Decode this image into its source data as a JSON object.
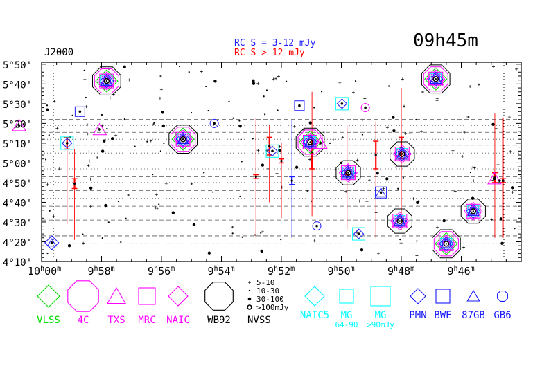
{
  "header": {
    "epoch": "J2000",
    "rc_line_1": "RC S = 3-12 mJy",
    "rc_line_2": "RC S > 12 mJy",
    "field_ra": "09h45m"
  },
  "colors": {
    "blue": "#1a1aff",
    "red": "#ff0000",
    "green": "#00dd00",
    "magenta": "#ff00ff",
    "cyan": "#00ffff",
    "black": "#000000"
  },
  "chart_data": {
    "type": "scatter",
    "xlabel": "",
    "ylabel": "",
    "x_axis": "Right Ascension (decreasing to the right)",
    "xlim_minutes": [
      600,
      584
    ],
    "ylim_arcmin": [
      250,
      351
    ],
    "x_ticks": [
      {
        "label_h": "10",
        "label_m": "00",
        "u": "h",
        "v": "m",
        "min": 600
      },
      {
        "label_h": "9",
        "label_m": "58",
        "u": "h",
        "v": "m",
        "min": 598
      },
      {
        "label_h": "9",
        "label_m": "56",
        "u": "h",
        "v": "m",
        "min": 596
      },
      {
        "label_h": "9",
        "label_m": "54",
        "u": "h",
        "v": "m",
        "min": 594
      },
      {
        "label_h": "9",
        "label_m": "52",
        "u": "h",
        "v": "m",
        "min": 592
      },
      {
        "label_h": "9",
        "label_m": "50",
        "u": "h",
        "v": "m",
        "min": 590
      },
      {
        "label_h": "9",
        "label_m": "48",
        "u": "h",
        "v": "m",
        "min": 588
      },
      {
        "label_h": "9",
        "label_m": "46",
        "u": "h",
        "v": "m",
        "min": 586
      }
    ],
    "y_ticks": [
      {
        "label": "5°50'",
        "arcmin": 350
      },
      {
        "label": "5°40'",
        "arcmin": 340
      },
      {
        "label": "5°30'",
        "arcmin": 330
      },
      {
        "label": "5°20'",
        "arcmin": 320
      },
      {
        "label": "5°10'",
        "arcmin": 310
      },
      {
        "label": "5°00'",
        "arcmin": 300
      },
      {
        "label": "4°50'",
        "arcmin": 290
      },
      {
        "label": "4°40'",
        "arcmin": 280
      },
      {
        "label": "4°30'",
        "arcmin": 270
      },
      {
        "label": "4°20'",
        "arcmin": 260
      },
      {
        "label": "4°10'",
        "arcmin": 250
      }
    ],
    "strip_lines_arcmin": [
      322,
      319,
      315.5,
      312,
      309,
      305,
      301,
      297,
      293,
      290,
      286,
      282,
      278,
      274,
      271,
      267,
      263,
      259
    ],
    "bright_sources": [
      {
        "ra": 597.83,
        "dec": 341.5,
        "set": "full"
      },
      {
        "ra": 595.28,
        "dec": 312.0,
        "set": "full"
      },
      {
        "ra": 591.04,
        "dec": 310.5,
        "set": "full"
      },
      {
        "ra": 586.85,
        "dec": 342.5,
        "set": "full"
      },
      {
        "ra": 586.5,
        "dec": 259.0,
        "set": "full"
      },
      {
        "ra": 589.77,
        "dec": 295.0,
        "set": "partial"
      },
      {
        "ra": 587.97,
        "dec": 304.5,
        "set": "partial"
      },
      {
        "ra": 588.05,
        "dec": 270.5,
        "set": "partial"
      },
      {
        "ra": 585.6,
        "dec": 275.5,
        "set": "partial"
      }
    ],
    "small_sources": [
      {
        "ra": 599.15,
        "dec": 310.0,
        "shape": "square-cyan"
      },
      {
        "ra": 599.66,
        "dec": 259.5,
        "shape": "diamond-blue"
      },
      {
        "ra": 598.72,
        "dec": 326.0,
        "shape": "square-blue"
      },
      {
        "ra": 598.06,
        "dec": 317.0,
        "shape": "triangle-magenta"
      },
      {
        "ra": 594.24,
        "dec": 320.0,
        "shape": "circle-blue"
      },
      {
        "ra": 592.3,
        "dec": 306.0,
        "shape": "square-cyan"
      },
      {
        "ra": 591.4,
        "dec": 329.0,
        "shape": "square-blue"
      },
      {
        "ra": 590.82,
        "dec": 268.0,
        "shape": "circle-blue"
      },
      {
        "ra": 590.7,
        "dec": 310.0,
        "shape": "triangle-magenta"
      },
      {
        "ra": 589.98,
        "dec": 330.0,
        "shape": "square-cyan"
      },
      {
        "ra": 589.42,
        "dec": 264.0,
        "shape": "square-cyan"
      },
      {
        "ra": 589.2,
        "dec": 328.0,
        "shape": "circle-magenta"
      },
      {
        "ra": 588.68,
        "dec": 285.0,
        "shape": "triangle-blue"
      },
      {
        "ra": 584.89,
        "dec": 292.0,
        "shape": "triangle-magenta"
      },
      {
        "ra": 584.72,
        "dec": 291.0,
        "shape": "point"
      },
      {
        "ra": 600.75,
        "dec": 319.0,
        "shape": "triangle-magenta"
      },
      {
        "ra": 590.0,
        "dec": 300.0,
        "shape": "point"
      }
    ],
    "rc_bars_red": [
      {
        "ra": 599.15,
        "dec_low": 269,
        "dec_high": 307,
        "err_low": 307,
        "err_high": 313
      },
      {
        "ra": 598.9,
        "dec_low": 261,
        "dec_high": 307,
        "err_low": 287,
        "err_high": 292
      },
      {
        "ra": 592.85,
        "dec_low": 262,
        "dec_high": 323,
        "err_low": 292,
        "err_high": 294
      },
      {
        "ra": 592.4,
        "dec_low": 280,
        "dec_high": 319,
        "err_low": 304,
        "err_high": 313
      },
      {
        "ra": 592.0,
        "dec_low": 272,
        "dec_high": 310,
        "err_low": 300,
        "err_high": 302
      },
      {
        "ra": 590.98,
        "dec_low": 273,
        "dec_high": 336,
        "err_low": 297,
        "err_high": 314
      },
      {
        "ra": 589.81,
        "dec_low": 266,
        "dec_high": 319,
        "err_low": 292,
        "err_high": 294
      },
      {
        "ra": 588.85,
        "dec_low": 262,
        "dec_high": 321,
        "err_low": 297,
        "err_high": 311
      },
      {
        "ra": 588.0,
        "dec_low": 266,
        "dec_high": 338,
        "err_low": 302,
        "err_high": 313
      },
      {
        "ra": 584.88,
        "dec_low": 262,
        "dec_high": 325,
        "err_low": 290,
        "err_high": 295
      },
      {
        "ra": 584.6,
        "dec_low": 262,
        "dec_high": 323,
        "err_low": 290,
        "err_high": 292
      }
    ],
    "rc_bars_blue": [
      {
        "ra": 591.65,
        "dec_low": 262,
        "dec_high": 322,
        "err_low": 289,
        "err_high": 293
      }
    ]
  },
  "legend": {
    "items": [
      {
        "shape": "diamond",
        "color": "#00dd00",
        "label": "VLSS"
      },
      {
        "shape": "octagon",
        "color": "#ff00ff",
        "label": "4C"
      },
      {
        "shape": "triangle",
        "color": "#ff00ff",
        "label": "TXS"
      },
      {
        "shape": "square",
        "color": "#ff00ff",
        "label": "MRC"
      },
      {
        "shape": "diamond",
        "color": "#ff00ff",
        "label": "NAIC"
      },
      {
        "shape": "octagon",
        "color": "#000000",
        "label": "WB92"
      }
    ],
    "nvss_title": "NVSS",
    "nvss_rows": [
      "5-10",
      "10-30",
      "30-100",
      ">100mJy"
    ],
    "cyan_items": [
      {
        "shape": "diamond",
        "label": "NAIC5",
        "sub": ""
      },
      {
        "shape": "square-small",
        "label": "MG",
        "sub": "64-90"
      },
      {
        "shape": "square-large",
        "label": "MG",
        "sub": ">90mJy"
      }
    ],
    "blue_items": [
      {
        "shape": "diamond",
        "label": "PMN"
      },
      {
        "shape": "square",
        "label": "BWE"
      },
      {
        "shape": "triangle",
        "label": "87GB"
      },
      {
        "shape": "octagon",
        "label": "GB6"
      }
    ]
  }
}
